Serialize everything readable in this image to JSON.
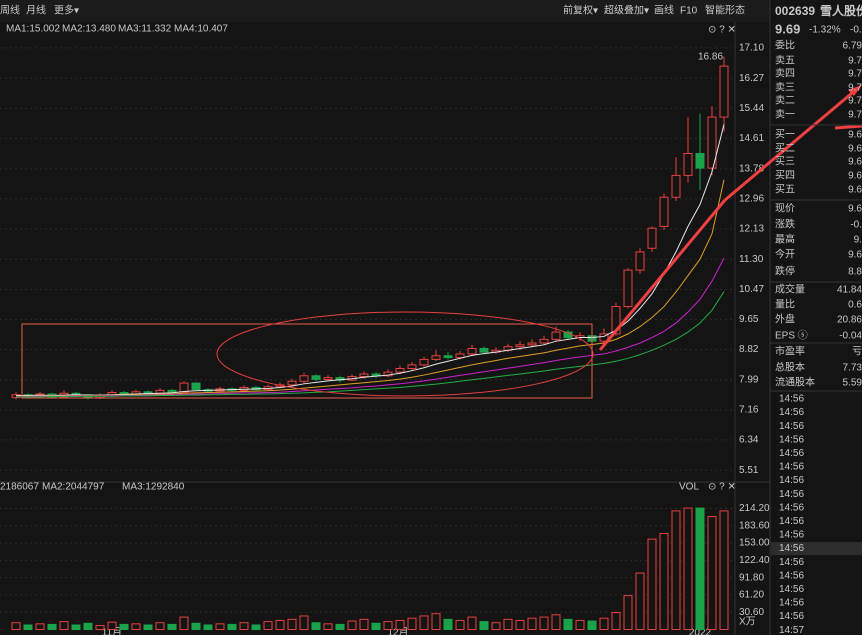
{
  "toolbar": {
    "left": [
      "周线",
      "月线",
      "更多▾"
    ],
    "right": [
      "前复权▾",
      "超级叠加▾",
      "画线",
      "F10",
      "智能形态"
    ]
  },
  "chart_data": {
    "type": "candlestick",
    "ma_lines": [
      {
        "name": "MA1:15.002",
        "color": "#e8e8e8",
        "values": [
          7.56,
          7.56,
          7.57,
          7.56,
          7.57,
          7.58,
          7.57,
          7.57,
          7.58,
          7.59,
          7.6,
          7.61,
          7.62,
          7.63,
          7.67,
          7.69,
          7.7,
          7.71,
          7.72,
          7.73,
          7.74,
          7.75,
          7.78,
          7.82,
          7.88,
          7.92,
          7.96,
          7.99,
          8.02,
          8.06,
          8.09,
          8.12,
          8.17,
          8.24,
          8.32,
          8.42,
          8.5,
          8.58,
          8.66,
          8.71,
          8.75,
          8.8,
          8.85,
          8.9,
          8.95,
          9.05,
          9.1,
          9.15,
          9.15,
          9.18,
          9.35,
          9.6,
          9.95,
          10.35,
          10.9,
          11.5,
          12.2,
          12.8,
          13.7,
          15.0
        ]
      },
      {
        "name": "MA2:13.480",
        "color": "#e0a020",
        "values": [
          7.54,
          7.54,
          7.55,
          7.55,
          7.55,
          7.56,
          7.56,
          7.56,
          7.57,
          7.57,
          7.58,
          7.58,
          7.59,
          7.6,
          7.62,
          7.63,
          7.64,
          7.65,
          7.66,
          7.67,
          7.68,
          7.69,
          7.71,
          7.73,
          7.76,
          7.79,
          7.82,
          7.85,
          7.88,
          7.91,
          7.94,
          7.97,
          8.01,
          8.06,
          8.12,
          8.19,
          8.26,
          8.33,
          8.4,
          8.46,
          8.52,
          8.58,
          8.63,
          8.68,
          8.73,
          8.8,
          8.86,
          8.92,
          8.96,
          9.0,
          9.1,
          9.25,
          9.45,
          9.7,
          10.0,
          10.4,
          10.85,
          11.3,
          12.0,
          13.48
        ]
      },
      {
        "name": "MA3:11.332",
        "color": "#d020d0",
        "values": [
          7.53,
          7.53,
          7.54,
          7.54,
          7.54,
          7.55,
          7.55,
          7.55,
          7.56,
          7.56,
          7.56,
          7.57,
          7.57,
          7.58,
          7.59,
          7.6,
          7.6,
          7.61,
          7.62,
          7.63,
          7.63,
          7.64,
          7.65,
          7.67,
          7.69,
          7.71,
          7.73,
          7.75,
          7.77,
          7.8,
          7.82,
          7.85,
          7.88,
          7.92,
          7.96,
          8.01,
          8.06,
          8.11,
          8.16,
          8.21,
          8.26,
          8.31,
          8.36,
          8.41,
          8.46,
          8.52,
          8.57,
          8.62,
          8.66,
          8.7,
          8.78,
          8.88,
          9.0,
          9.15,
          9.32,
          9.55,
          9.85,
          10.2,
          10.7,
          11.33
        ]
      },
      {
        "name": "MA4:10.407",
        "color": "#20b040",
        "values": [
          7.52,
          7.52,
          7.52,
          7.53,
          7.53,
          7.53,
          7.54,
          7.54,
          7.54,
          7.55,
          7.55,
          7.55,
          7.56,
          7.56,
          7.57,
          7.57,
          7.58,
          7.58,
          7.59,
          7.59,
          7.6,
          7.6,
          7.61,
          7.62,
          7.63,
          7.65,
          7.66,
          7.68,
          7.7,
          7.72,
          7.74,
          7.76,
          7.78,
          7.81,
          7.84,
          7.87,
          7.91,
          7.95,
          7.99,
          8.03,
          8.07,
          8.11,
          8.15,
          8.19,
          8.23,
          8.28,
          8.32,
          8.36,
          8.4,
          8.44,
          8.5,
          8.58,
          8.68,
          8.8,
          8.94,
          9.1,
          9.3,
          9.55,
          9.9,
          10.41
        ]
      }
    ],
    "candles": [
      [
        7.5,
        7.58,
        7.65,
        7.45
      ],
      [
        7.58,
        7.55,
        7.62,
        7.5
      ],
      [
        7.55,
        7.6,
        7.66,
        7.5
      ],
      [
        7.6,
        7.52,
        7.63,
        7.48
      ],
      [
        7.52,
        7.62,
        7.7,
        7.5
      ],
      [
        7.62,
        7.58,
        7.66,
        7.54
      ],
      [
        7.58,
        7.5,
        7.6,
        7.45
      ],
      [
        7.5,
        7.56,
        7.62,
        7.46
      ],
      [
        7.56,
        7.64,
        7.7,
        7.52
      ],
      [
        7.64,
        7.6,
        7.68,
        7.55
      ],
      [
        7.6,
        7.66,
        7.72,
        7.56
      ],
      [
        7.66,
        7.62,
        7.7,
        7.58
      ],
      [
        7.62,
        7.7,
        7.76,
        7.6
      ],
      [
        7.7,
        7.65,
        7.74,
        7.6
      ],
      [
        7.65,
        7.9,
        7.95,
        7.62
      ],
      [
        7.9,
        7.72,
        7.92,
        7.68
      ],
      [
        7.72,
        7.68,
        7.76,
        7.64
      ],
      [
        7.68,
        7.74,
        7.8,
        7.64
      ],
      [
        7.74,
        7.7,
        7.78,
        7.66
      ],
      [
        7.7,
        7.78,
        7.84,
        7.68
      ],
      [
        7.78,
        7.72,
        7.82,
        7.68
      ],
      [
        7.72,
        7.8,
        7.86,
        7.7
      ],
      [
        7.8,
        7.85,
        7.92,
        7.76
      ],
      [
        7.85,
        7.95,
        8.02,
        7.8
      ],
      [
        7.95,
        8.1,
        8.18,
        7.9
      ],
      [
        8.1,
        8.0,
        8.14,
        7.95
      ],
      [
        8.0,
        8.05,
        8.12,
        7.96
      ],
      [
        8.05,
        7.98,
        8.1,
        7.92
      ],
      [
        7.98,
        8.08,
        8.14,
        7.95
      ],
      [
        8.08,
        8.15,
        8.22,
        8.02
      ],
      [
        8.15,
        8.1,
        8.2,
        8.05
      ],
      [
        8.1,
        8.2,
        8.28,
        8.06
      ],
      [
        8.2,
        8.3,
        8.38,
        8.15
      ],
      [
        8.3,
        8.4,
        8.48,
        8.25
      ],
      [
        8.4,
        8.55,
        8.62,
        8.35
      ],
      [
        8.55,
        8.65,
        8.8,
        8.5
      ],
      [
        8.65,
        8.6,
        8.75,
        8.55
      ],
      [
        8.6,
        8.7,
        8.78,
        8.55
      ],
      [
        8.7,
        8.85,
        8.95,
        8.65
      ],
      [
        8.85,
        8.75,
        8.9,
        8.7
      ],
      [
        8.75,
        8.8,
        8.88,
        8.7
      ],
      [
        8.8,
        8.9,
        8.98,
        8.75
      ],
      [
        8.9,
        8.95,
        9.05,
        8.82
      ],
      [
        8.95,
        9.0,
        9.1,
        8.88
      ],
      [
        9.0,
        9.1,
        9.2,
        8.95
      ],
      [
        9.1,
        9.3,
        9.45,
        9.05
      ],
      [
        9.3,
        9.15,
        9.35,
        9.1
      ],
      [
        9.15,
        9.2,
        9.3,
        9.05
      ],
      [
        9.2,
        9.05,
        9.25,
        8.98
      ],
      [
        9.05,
        9.25,
        9.4,
        9.0
      ],
      [
        9.25,
        10.0,
        10.1,
        9.2
      ],
      [
        10.0,
        11.0,
        11.05,
        9.95
      ],
      [
        11.0,
        11.5,
        11.6,
        10.9
      ],
      [
        11.6,
        12.15,
        12.2,
        11.5
      ],
      [
        12.2,
        13.0,
        13.1,
        12.1
      ],
      [
        13.0,
        13.6,
        14.1,
        12.9
      ],
      [
        13.6,
        14.2,
        15.2,
        13.4
      ],
      [
        14.2,
        13.8,
        15.3,
        13.2
      ],
      [
        13.8,
        15.2,
        15.5,
        13.6
      ],
      [
        15.2,
        16.6,
        16.86,
        14.8
      ]
    ],
    "volumes": [
      12,
      8,
      10,
      9,
      14,
      8,
      11,
      7,
      13,
      9,
      10,
      8,
      12,
      9,
      22,
      11,
      8,
      10,
      9,
      12,
      8,
      14,
      16,
      18,
      24,
      12,
      10,
      9,
      15,
      18,
      11,
      14,
      16,
      20,
      24,
      28,
      18,
      16,
      22,
      14,
      12,
      18,
      16,
      20,
      22,
      26,
      18,
      16,
      15,
      20,
      30,
      60,
      100,
      160,
      170,
      210,
      215,
      215,
      200,
      210
    ],
    "ylim": [
      5.24,
      17.81
    ],
    "yticks": [
      {
        "value": 17.1,
        "label": "17.10"
      },
      16.27,
      15.44,
      14.61,
      13.78,
      12.96,
      12.13,
      {
        "value": 11.3,
        "label": "11.30"
      },
      10.47,
      9.65,
      8.82,
      7.99,
      7.16,
      6.34,
      5.51
    ],
    "vol_ylim": [
      0,
      247
    ],
    "vol_yticks": [
      {
        "value": 214.2,
        "label": "214.20"
      },
      {
        "value": 183.6,
        "label": "183.60"
      },
      {
        "value": 153,
        "label": "153.00"
      },
      {
        "value": 122.4,
        "label": "122.40"
      },
      {
        "value": 91.8,
        "label": "91.80"
      },
      {
        "value": 61.2,
        "label": "61.20"
      },
      {
        "value": 30.6,
        "label": "30.60"
      }
    ],
    "vol_unit": "X万",
    "vol_title": "VOL",
    "vol_legend": [
      {
        "text": "2186067",
        "color": "#e0a020"
      },
      {
        "text": "MA2:2044797",
        "color": "#d020d0"
      },
      {
        "text": "MA3:1292840",
        "color": "#20b040"
      }
    ],
    "x_labels": [
      "11月",
      "12月",
      "2022"
    ],
    "up_color": "#e8403c",
    "down_color": "#1aa34a",
    "grid": true
  },
  "panel": {
    "code": "002639",
    "name": "雪人股份",
    "price": "9.69",
    "change_pct": "-1.32%",
    "change": "-0.",
    "rows": [
      {
        "label": "委比",
        "value": "6.79",
        "color": "#e8403c"
      },
      {
        "label": "卖五",
        "value": "9.7",
        "color": "#1aa34a"
      },
      {
        "label": "卖四",
        "value": "9.7",
        "color": "#1aa34a"
      },
      {
        "label": "卖三",
        "value": "9.7",
        "color": "#1aa34a"
      },
      {
        "label": "卖二",
        "value": "9.7",
        "color": "#1aa34a"
      },
      {
        "label": "卖一",
        "value": "9.7",
        "color": "#1aa34a"
      },
      {
        "label": "买一",
        "value": "9.6",
        "color": "#1aa34a"
      },
      {
        "label": "买二",
        "value": "9.6",
        "color": "#1aa34a"
      },
      {
        "label": "买三",
        "value": "9.6",
        "color": "#1aa34a"
      },
      {
        "label": "买四",
        "value": "9.6",
        "color": "#1aa34a"
      },
      {
        "label": "买五",
        "value": "9.6",
        "color": "#1aa34a"
      },
      {
        "label": "现价",
        "value": "9.6",
        "color": "#1aa34a"
      },
      {
        "label": "涨跌",
        "value": "-0.",
        "color": "#1aa34a"
      },
      {
        "label": "最高",
        "value": "9.",
        "color": "#1aa34a"
      },
      {
        "label": "今开",
        "value": "9.6",
        "color": "#1aa34a"
      },
      {
        "label": "跌停",
        "value": "8.8",
        "color": "#1aa34a"
      },
      {
        "label": "成交量",
        "value": "41.84",
        "color": "#e8e8e8"
      },
      {
        "label": "量比",
        "value": "0.6",
        "color": "#e8e8e8"
      },
      {
        "label": "外盘",
        "value": "20.86",
        "color": "#e8403c"
      },
      {
        "label": "EPS ⓢ",
        "value": "-0.04",
        "color": "#e8e8e8"
      },
      {
        "label": "市盈率",
        "value": "亏",
        "color": "#e8e8e8"
      },
      {
        "label": "总股本",
        "value": "7.73",
        "color": "#e8e8e8"
      },
      {
        "label": "流通股本",
        "value": "5.59",
        "color": "#e8e8e8"
      }
    ],
    "times": [
      "14:56",
      "14:56",
      "14:56",
      "14:56",
      "14:56",
      "14:56",
      "14:56",
      "14:56",
      "14:56",
      "14:56",
      "14:56",
      "14:56",
      "14:56",
      "14:56",
      "14:56",
      "14:56",
      "14:56",
      "14:57"
    ]
  }
}
